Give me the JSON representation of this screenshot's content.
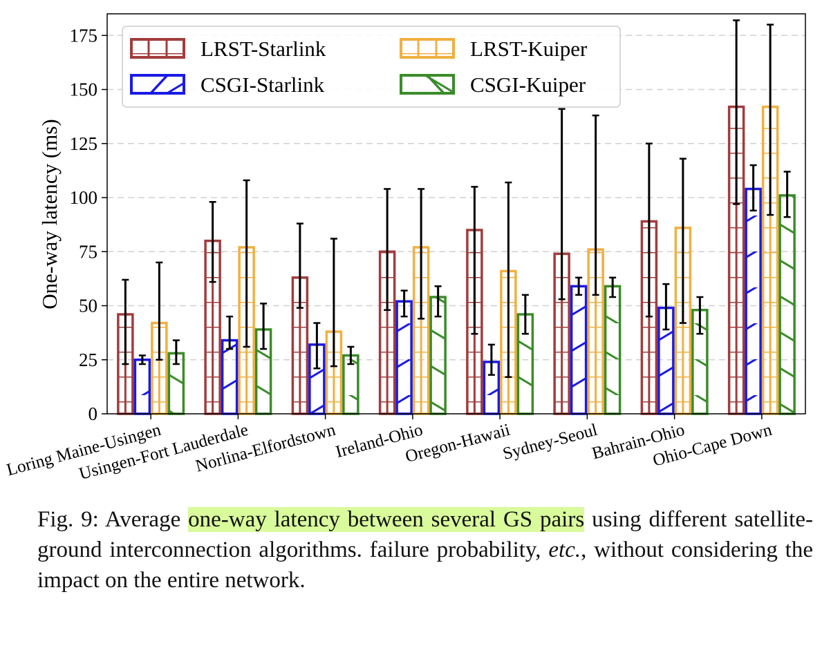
{
  "chart_data": {
    "type": "bar",
    "ylabel": "One-way latency (ms)",
    "xlabel": "",
    "ylim": [
      0,
      185
    ],
    "yticks": [
      0,
      25,
      50,
      75,
      100,
      125,
      150,
      175
    ],
    "grid": true,
    "legend_position": "top-left",
    "categories": [
      "Loring Maine-Usingen",
      "Usingen-Fort Lauderdale",
      "Norlina-Elfordstown",
      "Ireland-Ohio",
      "Oregon-Hawaii",
      "Sydney-Seoul",
      "Bahrain-Ohio",
      "Ohio-Cape Down"
    ],
    "series": [
      {
        "name": "LRST-Starlink",
        "color": "#a23c3c",
        "hatch": "grid",
        "values": [
          46,
          80,
          63,
          75,
          85,
          74,
          89,
          142
        ],
        "err_low": [
          23,
          61,
          49,
          48,
          37,
          53,
          45,
          97
        ],
        "err_high": [
          62,
          98,
          88,
          104,
          105,
          141,
          125,
          182
        ]
      },
      {
        "name": "CSGI-Starlink",
        "color": "#1a1ae6",
        "hatch": "forward",
        "values": [
          25,
          34,
          32,
          52,
          24,
          59,
          49,
          104
        ],
        "err_low": [
          23,
          30,
          21,
          45,
          18,
          55,
          39,
          94
        ],
        "err_high": [
          27,
          45,
          42,
          57,
          32,
          63,
          60,
          115
        ]
      },
      {
        "name": "LRST-Kuiper",
        "color": "#f0b040",
        "hatch": "grid",
        "values": [
          42,
          77,
          38,
          77,
          66,
          76,
          86,
          142
        ],
        "err_low": [
          25,
          31,
          22,
          44,
          17,
          55,
          42,
          92
        ],
        "err_high": [
          70,
          108,
          81,
          104,
          107,
          138,
          118,
          180
        ]
      },
      {
        "name": "CSGI-Kuiper",
        "color": "#3a8c2a",
        "hatch": "back",
        "values": [
          28,
          39,
          27,
          54,
          46,
          59,
          48,
          101
        ],
        "err_low": [
          23,
          30,
          23,
          45,
          37,
          54,
          37,
          91
        ],
        "err_high": [
          34,
          51,
          31,
          59,
          55,
          63,
          54,
          112
        ]
      }
    ]
  },
  "caption": {
    "prefix": "Fig. 9: Average ",
    "highlight": "one-way latency between several GS pairs",
    "rest": " using different satellite-ground interconnection algorithms. failure probability, ",
    "emph": "etc.",
    "suffix": ", without considering the impact on the entire network."
  }
}
